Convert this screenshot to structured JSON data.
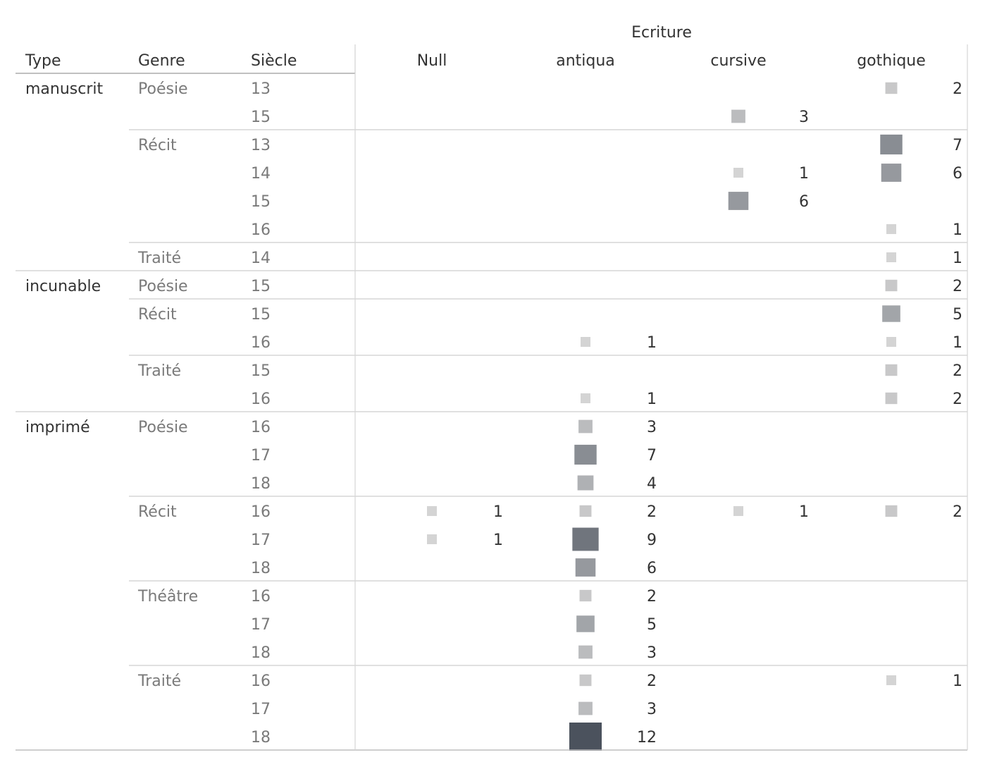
{
  "chart_data": {
    "type": "table",
    "column_header": "Ecriture",
    "row_headers": [
      "Type",
      "Genre",
      "Siècle"
    ],
    "columns": [
      "Null",
      "antiqua",
      "cursive",
      "gothique"
    ],
    "groups": [
      {
        "type": "manuscrit",
        "genres": [
          {
            "genre": "Poésie",
            "rows": [
              {
                "siecle": "13",
                "values": [
                  null,
                  null,
                  null,
                  2
                ]
              },
              {
                "siecle": "15",
                "values": [
                  null,
                  null,
                  3,
                  null
                ]
              }
            ]
          },
          {
            "genre": "Récit",
            "rows": [
              {
                "siecle": "13",
                "values": [
                  null,
                  null,
                  null,
                  7
                ]
              },
              {
                "siecle": "14",
                "values": [
                  null,
                  null,
                  1,
                  6
                ]
              },
              {
                "siecle": "15",
                "values": [
                  null,
                  null,
                  6,
                  null
                ]
              },
              {
                "siecle": "16",
                "values": [
                  null,
                  null,
                  null,
                  1
                ]
              }
            ]
          },
          {
            "genre": "Traité",
            "rows": [
              {
                "siecle": "14",
                "values": [
                  null,
                  null,
                  null,
                  1
                ]
              }
            ]
          }
        ]
      },
      {
        "type": "incunable",
        "genres": [
          {
            "genre": "Poésie",
            "rows": [
              {
                "siecle": "15",
                "values": [
                  null,
                  null,
                  null,
                  2
                ]
              }
            ]
          },
          {
            "genre": "Récit",
            "rows": [
              {
                "siecle": "15",
                "values": [
                  null,
                  null,
                  null,
                  5
                ]
              },
              {
                "siecle": "16",
                "values": [
                  null,
                  1,
                  null,
                  1
                ]
              }
            ]
          },
          {
            "genre": "Traité",
            "rows": [
              {
                "siecle": "15",
                "values": [
                  null,
                  null,
                  null,
                  2
                ]
              },
              {
                "siecle": "16",
                "values": [
                  null,
                  1,
                  null,
                  2
                ]
              }
            ]
          }
        ]
      },
      {
        "type": "imprimé",
        "genres": [
          {
            "genre": "Poésie",
            "rows": [
              {
                "siecle": "16",
                "values": [
                  null,
                  3,
                  null,
                  null
                ]
              },
              {
                "siecle": "17",
                "values": [
                  null,
                  7,
                  null,
                  null
                ]
              },
              {
                "siecle": "18",
                "values": [
                  null,
                  4,
                  null,
                  null
                ]
              }
            ]
          },
          {
            "genre": "Récit",
            "rows": [
              {
                "siecle": "16",
                "values": [
                  1,
                  2,
                  1,
                  2
                ]
              },
              {
                "siecle": "17",
                "values": [
                  1,
                  9,
                  null,
                  null
                ]
              },
              {
                "siecle": "18",
                "values": [
                  null,
                  6,
                  null,
                  null
                ]
              }
            ]
          },
          {
            "genre": "Théâtre",
            "rows": [
              {
                "siecle": "16",
                "values": [
                  null,
                  2,
                  null,
                  null
                ]
              },
              {
                "siecle": "17",
                "values": [
                  null,
                  5,
                  null,
                  null
                ]
              },
              {
                "siecle": "18",
                "values": [
                  null,
                  3,
                  null,
                  null
                ]
              }
            ]
          },
          {
            "genre": "Traité",
            "rows": [
              {
                "siecle": "16",
                "values": [
                  null,
                  2,
                  null,
                  1
                ]
              },
              {
                "siecle": "17",
                "values": [
                  null,
                  3,
                  null,
                  null
                ]
              },
              {
                "siecle": "18",
                "values": [
                  null,
                  12,
                  null,
                  null
                ]
              }
            ]
          }
        ]
      }
    ],
    "value_range": [
      1,
      12
    ],
    "mark": "square sized and shaded by count",
    "color_light": "#d4d4d4",
    "color_dark": "#4b525d"
  }
}
